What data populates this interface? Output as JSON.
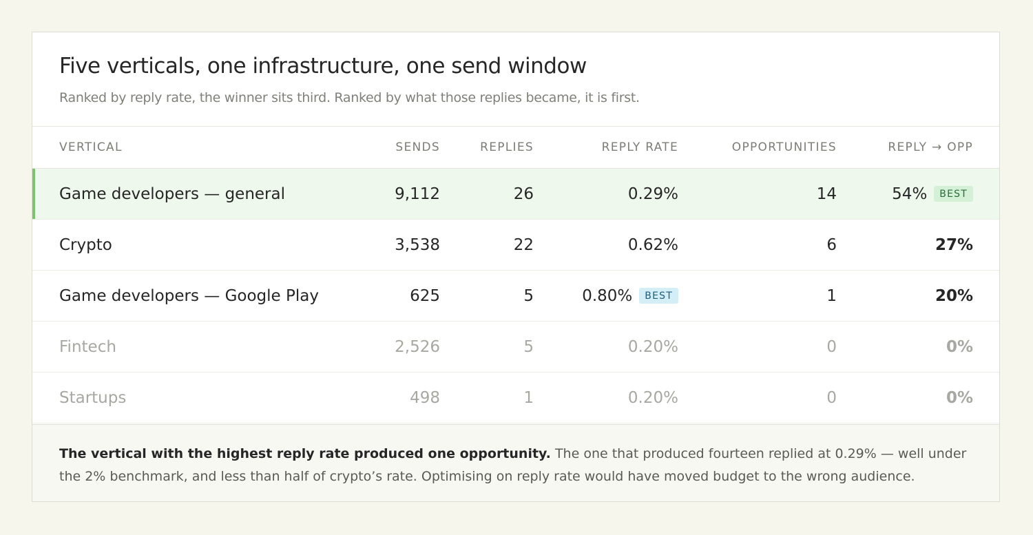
{
  "card": {
    "title": "Five verticals, one infrastructure, one send window",
    "subtitle": "Ranked by reply rate, the winner sits third. Ranked by what those replies became, it is first."
  },
  "table": {
    "columns": {
      "vertical": "VERTICAL",
      "sends": "SENDS",
      "replies": "REPLIES",
      "reply_rate": "REPLY RATE",
      "opportunities": "OPPORTUNITIES",
      "reply_opp": "REPLY → OPP"
    },
    "rows": [
      {
        "vertical": "Game developers — general",
        "sends": "9,112",
        "replies": "26",
        "reply_rate": "0.29%",
        "opportunities": "14",
        "reply_opp": "54%",
        "reply_opp_badge": "BEST",
        "highlighted": true
      },
      {
        "vertical": "Crypto",
        "sends": "3,538",
        "replies": "22",
        "reply_rate": "0.62%",
        "opportunities": "6",
        "reply_opp": "27%"
      },
      {
        "vertical": "Game developers — Google Play",
        "sends": "625",
        "replies": "5",
        "reply_rate": "0.80%",
        "reply_rate_badge": "BEST",
        "opportunities": "1",
        "reply_opp": "20%"
      },
      {
        "vertical": "Fintech",
        "sends": "2,526",
        "replies": "5",
        "reply_rate": "0.20%",
        "opportunities": "0",
        "reply_opp": "0%",
        "dimmed": true
      },
      {
        "vertical": "Startups",
        "sends": "498",
        "replies": "1",
        "reply_rate": "0.20%",
        "opportunities": "0",
        "reply_opp": "0%",
        "dimmed": true
      }
    ]
  },
  "footer": {
    "lead": "The vertical with the highest reply rate produced one opportunity.",
    "body": " The one that produced fourteen replied at 0.29% — well under the 2% benchmark, and less than half of crypto’s rate. Optimising on reply rate would have moved budget to the wrong audience."
  },
  "colors": {
    "page_background": "#f7f6ec",
    "highlight_row": "#eff8ec",
    "highlight_accent": "#7cc56e",
    "badge_green": "#d4f0d6",
    "badge_blue": "#d4eef8"
  }
}
